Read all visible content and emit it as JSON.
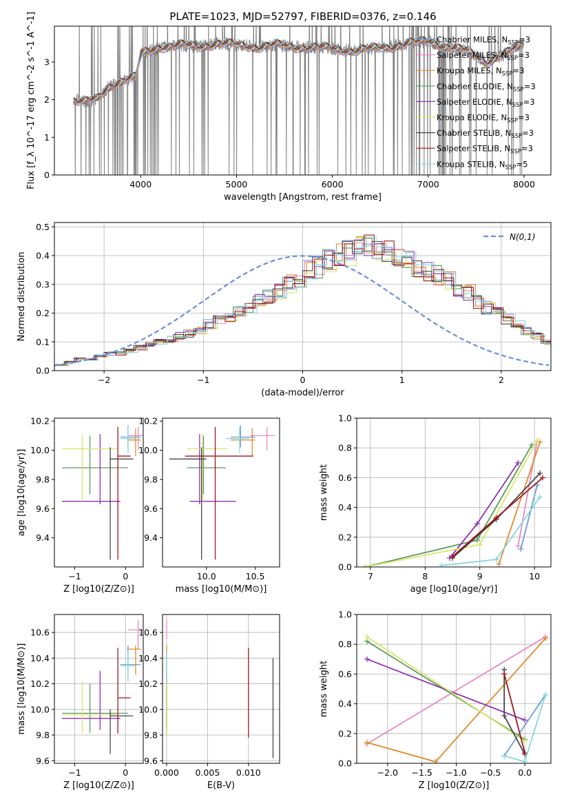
{
  "figure": {
    "title": "PLATE=1023, MJD=52797, FIBERID=0376, z=0.146"
  },
  "colors": {
    "Chabrier MILES": "#6b9bd6",
    "Salpeter MILES": "#e889c0",
    "Kroupa MILES": "#e08a2d",
    "Chabrier ELODIE": "#5a9a5a",
    "Salpeter ELODIE": "#8f2fb3",
    "Kroupa ELODIE": "#d6e66a",
    "Chabrier STELIB": "#444444",
    "Salpeter STELIB": "#a0151b",
    "Kroupa STELIB": "#84d6e0",
    "data": "#808080",
    "normal": "#6a8fd8"
  },
  "chart_data": [
    {
      "id": "spectrum",
      "type": "line",
      "xlabel": "wavelength [Angstrom, rest frame]",
      "ylabel": "Flux [f_λ 10^-17 erg cm^-2 s^-1 A^-1]",
      "xlim": [
        3100,
        8280
      ],
      "ylim": [
        0,
        3.95
      ],
      "xticks": [
        4000,
        5000,
        6000,
        7000,
        8000
      ],
      "yticks": [
        0,
        1,
        2,
        3
      ],
      "legend_position": "right",
      "series": [
        {
          "name": "Chabrier MILES, N_SSP=3"
        },
        {
          "name": "Salpeter MILES, N_SSP=3"
        },
        {
          "name": "Kroupa MILES, N_SSP=3"
        },
        {
          "name": "Chabrier ELODIE, N_SSP=3"
        },
        {
          "name": "Salpeter ELODIE, N_SSP=3"
        },
        {
          "name": "Kroupa ELODIE, N_SSP=3"
        },
        {
          "name": "Chabrier STELIB, N_SSP=3"
        },
        {
          "name": "Salpeter STELIB, N_SSP=3"
        },
        {
          "name": "Kroupa STELIB, N_SSP=5"
        }
      ],
      "model_continuum": [
        [
          3300,
          2.0
        ],
        [
          3420,
          1.95
        ],
        [
          3550,
          2.0
        ],
        [
          3650,
          2.3
        ],
        [
          3750,
          2.45
        ],
        [
          3850,
          2.55
        ],
        [
          3950,
          2.6
        ],
        [
          4000,
          3.2
        ],
        [
          4200,
          3.4
        ],
        [
          4400,
          3.45
        ],
        [
          4600,
          3.4
        ],
        [
          4800,
          3.5
        ],
        [
          5000,
          3.45
        ],
        [
          5200,
          3.4
        ],
        [
          5400,
          3.45
        ],
        [
          5600,
          3.4
        ],
        [
          5800,
          3.4
        ],
        [
          6000,
          3.35
        ],
        [
          6200,
          3.3
        ],
        [
          6400,
          3.35
        ],
        [
          6600,
          3.4
        ],
        [
          6800,
          3.5
        ],
        [
          7000,
          3.55
        ],
        [
          7200,
          3.4
        ],
        [
          7400,
          3.3
        ],
        [
          7600,
          3.0
        ],
        [
          7800,
          3.2
        ],
        [
          8000,
          3.5
        ]
      ]
    },
    {
      "id": "residuals",
      "type": "line",
      "xlabel": "(data-model)/error",
      "ylabel": "Normed distribution",
      "xlim": [
        -2.5,
        2.5
      ],
      "ylim": [
        0,
        0.515
      ],
      "xticks": [
        -2,
        -1,
        0,
        1,
        2
      ],
      "yticks": [
        0.0,
        0.1,
        0.2,
        0.3,
        0.4,
        0.5
      ],
      "grid": true,
      "legend": "N(0,1)",
      "legend_position": "top-right",
      "bin_width": 0.1,
      "residual_density": [
        0.02,
        0.03,
        0.04,
        0.04,
        0.05,
        0.06,
        0.06,
        0.07,
        0.08,
        0.09,
        0.1,
        0.11,
        0.12,
        0.13,
        0.14,
        0.16,
        0.18,
        0.19,
        0.21,
        0.22,
        0.24,
        0.26,
        0.28,
        0.3,
        0.32,
        0.35,
        0.36,
        0.38,
        0.4,
        0.41,
        0.42,
        0.43,
        0.43,
        0.42,
        0.4,
        0.38,
        0.36,
        0.35,
        0.33,
        0.31,
        0.29,
        0.27,
        0.24,
        0.22,
        0.2,
        0.18,
        0.16,
        0.14,
        0.12,
        0.1,
        0.09,
        0.07,
        0.06,
        0.05,
        0.04,
        0.04,
        0.03,
        0.03,
        0.02,
        0.02,
        0.015,
        0.01
      ]
    },
    {
      "id": "age-vs-Z",
      "type": "scatter",
      "xlabel": "Z [log10(Z/Z⊙)]",
      "ylabel": "age [log10(age/yr)]",
      "xlim": [
        -1.4,
        0.35
      ],
      "ylim": [
        9.2,
        10.22
      ],
      "xticks": [
        -1,
        0
      ],
      "yticks": [
        9.4,
        9.6,
        9.8,
        10.0,
        10.2
      ]
    },
    {
      "id": "age-vs-mass",
      "type": "scatter",
      "xlabel": "mass [log10(M/M⊙)]",
      "ylabel": "",
      "xlim": [
        9.55,
        10.75
      ],
      "ylim": [
        9.2,
        10.22
      ],
      "xticks": [
        10.0,
        10.5
      ],
      "yticks": [
        9.4,
        9.6,
        9.8,
        10.0,
        10.2
      ]
    },
    {
      "id": "weight-vs-age",
      "type": "line",
      "xlabel": "age [log10(age/yr)]",
      "ylabel": "mass weight",
      "xlim": [
        6.75,
        10.3
      ],
      "ylim": [
        0,
        1.0
      ],
      "xticks": [
        7,
        8,
        9,
        10
      ],
      "yticks": [
        0.0,
        0.2,
        0.4,
        0.6,
        0.8,
        1.0
      ],
      "grid": true
    },
    {
      "id": "mass-vs-Z",
      "type": "scatter",
      "xlabel": "Z [log10(Z/Z⊙)]",
      "ylabel": "mass [log10(M/M⊙)]",
      "xlim": [
        -1.4,
        0.35
      ],
      "ylim": [
        9.58,
        10.74
      ],
      "xticks": [
        -1,
        0
      ],
      "yticks": [
        9.6,
        9.8,
        10.0,
        10.2,
        10.4,
        10.6
      ],
      "grid": true
    },
    {
      "id": "mass-vs-ebv",
      "type": "scatter",
      "xlabel": "E(B-V)",
      "ylabel": "",
      "xlim": [
        -0.0005,
        0.0138
      ],
      "ylim": [
        9.58,
        10.74
      ],
      "xticks": [
        0.0,
        0.005,
        0.01
      ],
      "xtick_labels": [
        "0.000",
        "0.005",
        "0.010"
      ],
      "yticks": [
        9.6,
        9.8,
        10.0,
        10.2,
        10.4,
        10.6
      ],
      "grid": true
    },
    {
      "id": "weight-vs-Z",
      "type": "line",
      "xlabel": "Z [log10(Z/Z⊙)]",
      "ylabel": "mass weight",
      "xlim": [
        -2.45,
        0.38
      ],
      "ylim": [
        0,
        1.0
      ],
      "xticks": [
        -2.0,
        -1.5,
        -1.0,
        -0.5,
        0.0
      ],
      "yticks": [
        0.0,
        0.2,
        0.4,
        0.6,
        0.8,
        1.0
      ],
      "grid": true
    }
  ],
  "fits": [
    {
      "key": "Chabrier MILES",
      "Z": [
        0.05,
        -0.1,
        0.3
      ],
      "age": [
        10.09,
        10.02,
        10.17
      ],
      "mass": [
        10.35,
        10.25,
        10.5
      ],
      "massE": [
        10.35,
        10.25,
        10.45
      ],
      "ebv": 0.0,
      "ebvE": [
        10.3,
        10.4
      ],
      "wa": [
        [
          9.75,
          0.12
        ],
        [
          10.05,
          0.55
        ]
      ],
      "wz": [
        [
          -0.3,
          0.05
        ],
        [
          0.3,
          0.46
        ]
      ]
    },
    {
      "key": "Salpeter MILES",
      "Z": [
        0.25,
        0.05,
        0.35
      ],
      "age": [
        10.1,
        10.0,
        10.16
      ],
      "mass": [
        10.62,
        10.45,
        10.7
      ],
      "massE": [
        10.62,
        10.55,
        10.67
      ],
      "ebv": 0.0,
      "ebvE": [
        10.55,
        10.7
      ],
      "wa": [
        [
          9.7,
          0.14
        ],
        [
          10.05,
          0.85
        ]
      ],
      "wz": [
        [
          -2.3,
          0.13
        ],
        [
          0.3,
          0.85
        ]
      ]
    },
    {
      "key": "Kroupa MILES",
      "Z": [
        0.2,
        0.03,
        0.3
      ],
      "age": [
        10.07,
        9.96,
        10.15
      ],
      "mass": [
        10.47,
        10.25,
        10.5
      ],
      "massE": [
        10.47,
        10.4,
        10.5
      ],
      "ebv": 0.0,
      "ebvE": [
        10.4,
        10.5
      ],
      "wa": [
        [
          9.35,
          0.02
        ],
        [
          10.1,
          0.84
        ]
      ],
      "wz": [
        [
          -2.3,
          0.14
        ],
        [
          -1.3,
          0.01
        ],
        [
          0.3,
          0.84
        ]
      ]
    },
    {
      "key": "Chabrier ELODIE",
      "Z": [
        -0.7,
        -1.25,
        0.05
      ],
      "age": [
        9.88,
        9.7,
        10.1
      ],
      "mass": [
        9.97,
        9.8,
        10.2
      ],
      "massE": [
        9.97,
        9.8,
        10.2
      ],
      "ebv": 0.0,
      "ebvE": [
        9.8,
        10.2
      ],
      "wa": [
        [
          6.9,
          0.0
        ],
        [
          8.95,
          0.18
        ],
        [
          9.95,
          0.82
        ]
      ],
      "wz": [
        [
          -2.3,
          0.82
        ],
        [
          0.0,
          0.16
        ]
      ]
    },
    {
      "key": "Salpeter ELODIE",
      "Z": [
        -0.5,
        -1.25,
        -0.1
      ],
      "age": [
        9.65,
        9.63,
        10.11
      ],
      "mass": [
        9.93,
        9.83,
        10.3
      ],
      "massE": [
        9.93,
        9.83,
        10.3
      ],
      "ebv": 0.0,
      "ebvE": [
        9.83,
        10.3
      ],
      "wa": [
        [
          8.45,
          0.06
        ],
        [
          8.95,
          0.29
        ],
        [
          9.7,
          0.7
        ]
      ],
      "wz": [
        [
          -2.3,
          0.7
        ],
        [
          0.0,
          0.29
        ]
      ]
    },
    {
      "key": "Kroupa ELODIE",
      "Z": [
        -0.85,
        -1.25,
        -0.15
      ],
      "age": [
        10.01,
        9.65,
        10.11
      ],
      "mass": [
        9.96,
        9.8,
        10.22
      ],
      "massE": [
        9.96,
        9.8,
        10.22
      ],
      "ebv": 0.0,
      "ebvE": [
        9.8,
        10.22
      ],
      "wa": [
        [
          6.9,
          0.0
        ],
        [
          9.0,
          0.15
        ],
        [
          10.05,
          0.85
        ]
      ],
      "wz": [
        [
          -2.3,
          0.85
        ],
        [
          0.0,
          0.15
        ]
      ]
    },
    {
      "key": "Chabrier STELIB",
      "Z": [
        -0.3,
        -0.3,
        0.15
      ],
      "age": [
        9.94,
        9.25,
        10.02
      ],
      "mass": [
        9.95,
        9.62,
        10.0
      ],
      "massE": [
        9.95,
        9.62,
        10.0
      ],
      "ebv": 0.013,
      "ebvE": [
        9.62,
        10.4
      ],
      "wa": [
        [
          8.5,
          0.06
        ],
        [
          9.3,
          0.32
        ],
        [
          10.1,
          0.63
        ]
      ],
      "wz": [
        [
          -0.3,
          0.63
        ],
        [
          -0.3,
          0.32
        ],
        [
          0.0,
          0.06
        ]
      ]
    },
    {
      "key": "Salpeter STELIB",
      "Z": [
        -0.15,
        -0.15,
        0.1
      ],
      "age": [
        9.96,
        9.25,
        10.16
      ],
      "mass": [
        10.09,
        9.78,
        10.48
      ],
      "massE": [
        10.09,
        9.78,
        10.48
      ],
      "ebv": 0.01,
      "ebvE": [
        9.78,
        10.48
      ],
      "wa": [
        [
          8.5,
          0.07
        ],
        [
          9.3,
          0.33
        ],
        [
          10.15,
          0.6
        ]
      ],
      "wz": [
        [
          -0.3,
          0.6
        ],
        [
          0.0,
          0.07
        ]
      ]
    },
    {
      "key": "Kroupa STELIB",
      "Z": [
        0.05,
        -0.1,
        0.2
      ],
      "age": [
        10.08,
        9.98,
        10.16
      ],
      "mass": [
        10.34,
        10.2,
        10.44
      ],
      "massE": [
        10.34,
        10.2,
        10.44
      ],
      "ebv": 0.0,
      "ebvE": [
        10.2,
        10.44
      ],
      "wa": [
        [
          8.3,
          0.01
        ],
        [
          9.3,
          0.05
        ],
        [
          10.1,
          0.47
        ]
      ],
      "wz": [
        [
          -0.3,
          0.05
        ],
        [
          0.0,
          0.01
        ],
        [
          0.3,
          0.46
        ]
      ]
    }
  ]
}
